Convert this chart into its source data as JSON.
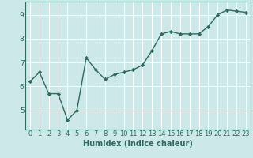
{
  "x": [
    0,
    1,
    2,
    3,
    4,
    5,
    6,
    7,
    8,
    9,
    10,
    11,
    12,
    13,
    14,
    15,
    16,
    17,
    18,
    19,
    20,
    21,
    22,
    23
  ],
  "y": [
    6.2,
    6.6,
    5.7,
    5.7,
    4.6,
    5.0,
    7.2,
    6.7,
    6.3,
    6.5,
    6.6,
    6.7,
    6.9,
    7.5,
    8.2,
    8.3,
    8.2,
    8.2,
    8.2,
    8.5,
    9.0,
    9.2,
    9.15,
    9.1
  ],
  "xlabel": "Humidex (Indice chaleur)",
  "ylim": [
    4.2,
    9.55
  ],
  "xlim": [
    -0.5,
    23.5
  ],
  "yticks": [
    5,
    6,
    7,
    8,
    9
  ],
  "xtick_labels": [
    "0",
    "1",
    "2",
    "3",
    "4",
    "5",
    "6",
    "7",
    "8",
    "9",
    "10",
    "11",
    "12",
    "13",
    "14",
    "15",
    "16",
    "17",
    "18",
    "19",
    "20",
    "21",
    "22",
    "23"
  ],
  "line_color": "#2d6b5e",
  "bg_color": "#cce8e8",
  "grid_color": "#ffffff",
  "marker": "D",
  "markersize": 2.2,
  "linewidth": 1.0,
  "tick_fontsize": 6.0,
  "xlabel_fontsize": 7.0
}
